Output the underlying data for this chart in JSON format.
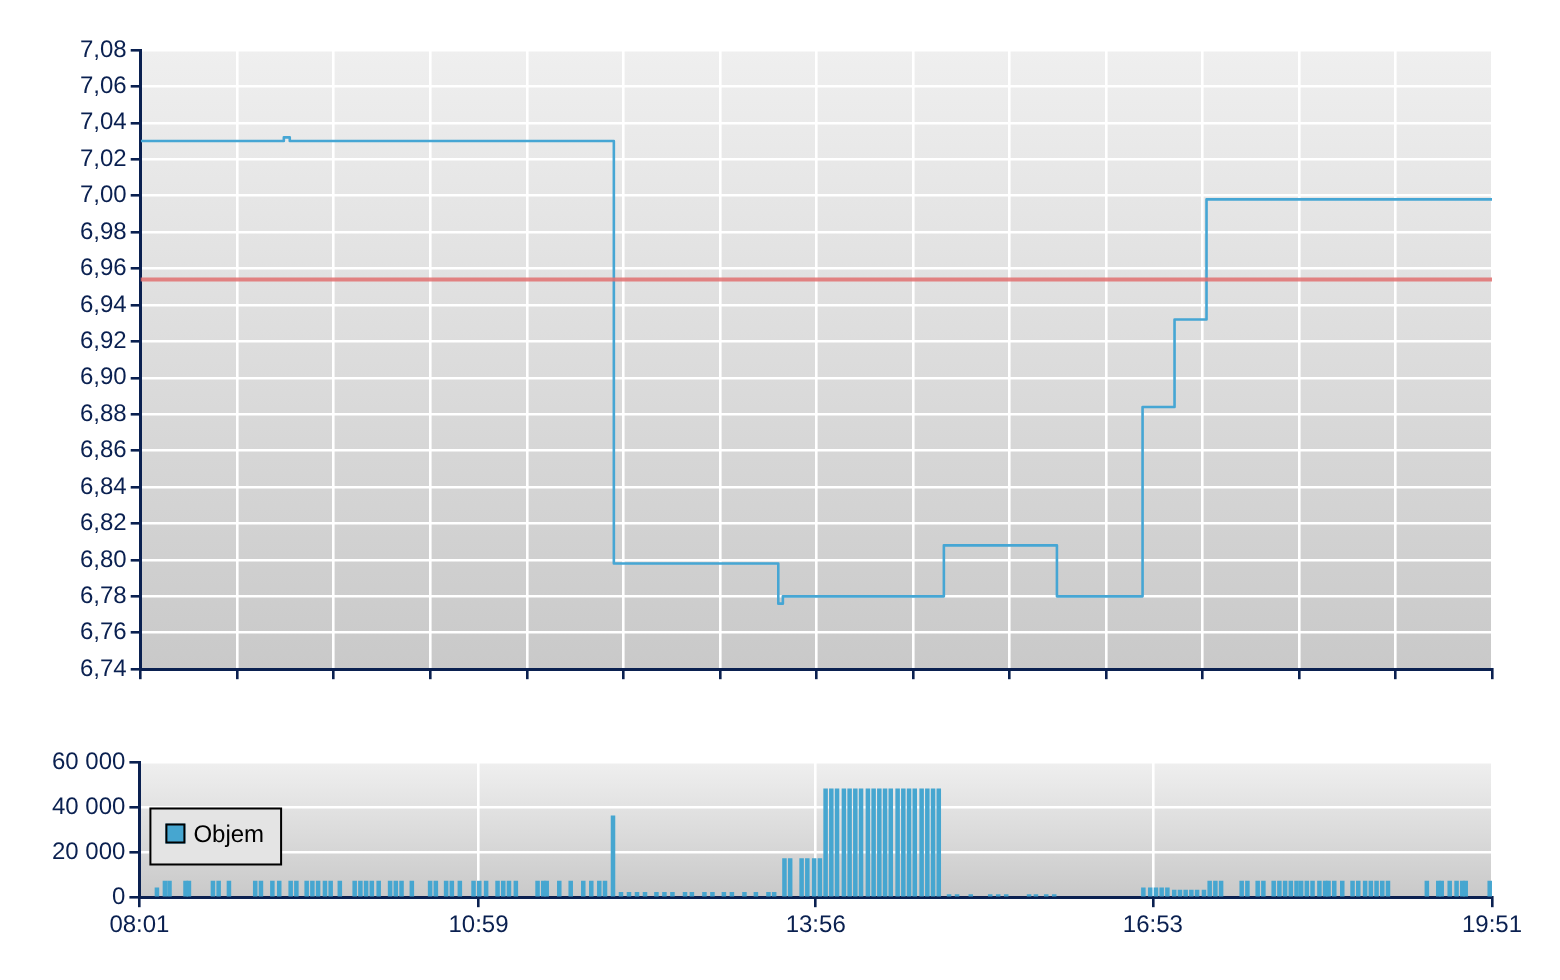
{
  "chart_data": [
    {
      "type": "step",
      "color": "#46a6d4",
      "x": [
        8.017,
        9.27,
        9.322,
        12.16,
        13.6,
        13.64,
        15.05,
        16.04,
        16.79,
        17.07,
        17.35,
        19.85
      ],
      "values": [
        7.03,
        7.032,
        7.03,
        6.798,
        6.776,
        6.78,
        6.808,
        6.78,
        6.884,
        6.932,
        6.998,
        6.998
      ],
      "xlim": [
        8.0167,
        19.85
      ],
      "xticks": [
        {
          "value": 8.0167,
          "label": null
        },
        {
          "value": 8.862,
          "label": null
        },
        {
          "value": 9.707,
          "label": null
        },
        {
          "value": 10.552,
          "label": null
        },
        {
          "value": 11.398,
          "label": null
        },
        {
          "value": 12.243,
          "label": null
        },
        {
          "value": 13.088,
          "label": null
        },
        {
          "value": 13.933,
          "label": null
        },
        {
          "value": 14.779,
          "label": null
        },
        {
          "value": 15.624,
          "label": null
        },
        {
          "value": 16.469,
          "label": null
        },
        {
          "value": 17.314,
          "label": null
        },
        {
          "value": 18.16,
          "label": null
        },
        {
          "value": 19.005,
          "label": null
        },
        {
          "value": 19.85,
          "label": null
        }
      ],
      "ylim": [
        6.74,
        7.08
      ],
      "yticks": [
        {
          "value": 6.74,
          "label": "6,74"
        },
        {
          "value": 6.76,
          "label": "6,76"
        },
        {
          "value": 6.78,
          "label": "6,78"
        },
        {
          "value": 6.8,
          "label": "6,80"
        },
        {
          "value": 6.82,
          "label": "6,82"
        },
        {
          "value": 6.84,
          "label": "6,84"
        },
        {
          "value": 6.86,
          "label": "6,86"
        },
        {
          "value": 6.88,
          "label": "6,88"
        },
        {
          "value": 6.9,
          "label": "6,90"
        },
        {
          "value": 6.92,
          "label": "6,92"
        },
        {
          "value": 6.94,
          "label": "6,94"
        },
        {
          "value": 6.96,
          "label": "6,96"
        },
        {
          "value": 6.98,
          "label": "6,98"
        },
        {
          "value": 7,
          "label": "7,00"
        },
        {
          "value": 7.02,
          "label": "7,02"
        },
        {
          "value": 7.04,
          "label": "7,04"
        },
        {
          "value": 7.06,
          "label": "7,06"
        },
        {
          "value": 7.08,
          "label": "7,08"
        }
      ],
      "grid": true,
      "tick_labels": "y",
      "ref_lines": [
        {
          "axis": "y",
          "value": 6.954,
          "color": "#e07070"
        }
      ]
    },
    {
      "type": "bar",
      "legend": "left",
      "grid": true,
      "x": [
        8.17,
        8.24,
        8.28,
        8.42,
        8.45,
        8.66,
        8.71,
        8.8,
        9.03,
        9.08,
        9.18,
        9.24,
        9.34,
        9.39,
        9.48,
        9.53,
        9.58,
        9.64,
        9.69,
        9.77,
        9.9,
        9.95,
        10.0,
        10.05,
        10.11,
        10.21,
        10.26,
        10.31,
        10.4,
        10.56,
        10.61,
        10.7,
        10.75,
        10.82,
        10.94,
        10.99,
        11.05,
        11.15,
        11.2,
        11.25,
        11.31,
        11.5,
        11.55,
        11.58,
        11.69,
        11.79,
        11.9,
        11.97,
        12.04,
        12.09,
        12.16,
        12.23,
        12.3,
        12.37,
        12.44,
        12.54,
        12.61,
        12.68,
        12.79,
        12.85,
        12.96,
        13.03,
        13.13,
        13.2,
        13.31,
        13.41,
        13.52,
        13.57,
        13.66,
        13.71,
        13.81,
        13.86,
        13.92,
        13.97,
        14.02,
        14.07,
        14.12,
        14.18,
        14.23,
        14.28,
        14.33,
        14.39,
        14.44,
        14.49,
        14.54,
        14.59,
        14.65,
        14.7,
        14.75,
        14.8,
        14.86,
        14.91,
        14.96,
        15.01,
        15.1,
        15.17,
        15.29,
        15.46,
        15.53,
        15.6,
        15.8,
        15.86,
        15.95,
        16.02,
        16.8,
        16.86,
        16.91,
        16.96,
        17.01,
        17.07,
        17.12,
        17.17,
        17.22,
        17.27,
        17.33,
        17.38,
        17.43,
        17.48,
        17.66,
        17.71,
        17.8,
        17.85,
        17.94,
        17.99,
        18.04,
        18.09,
        18.14,
        18.18,
        18.23,
        18.28,
        18.34,
        18.39,
        18.42,
        18.47,
        18.54,
        18.63,
        18.68,
        18.74,
        18.79,
        18.84,
        18.89,
        18.94,
        19.28,
        19.38,
        19.41,
        19.48,
        19.54,
        19.59,
        19.62,
        19.83
      ],
      "series": [
        {
          "name": "Objem",
          "color": "#46a6d0",
          "values": [
            4000,
            7000,
            7000,
            7000,
            7000,
            7000,
            7000,
            7000,
            7000,
            7000,
            7000,
            7000,
            7000,
            7000,
            7000,
            7000,
            7000,
            7000,
            7000,
            7000,
            7000,
            7000,
            7000,
            7000,
            7000,
            7000,
            7000,
            7000,
            7000,
            7000,
            7000,
            7000,
            7000,
            7000,
            7000,
            7000,
            7000,
            7000,
            7000,
            7000,
            7000,
            7000,
            7000,
            7000,
            7000,
            7000,
            7000,
            7000,
            7000,
            7000,
            36000,
            2000,
            2000,
            2000,
            2000,
            2000,
            2000,
            2000,
            2000,
            2000,
            2000,
            2000,
            2000,
            2000,
            2000,
            2000,
            2000,
            2000,
            17000,
            17000,
            17000,
            17000,
            17000,
            17000,
            48000,
            48000,
            48000,
            48000,
            48000,
            48000,
            48000,
            48000,
            48000,
            48000,
            48000,
            48000,
            48000,
            48000,
            48000,
            48000,
            48000,
            48000,
            48000,
            48000,
            1000,
            1000,
            1000,
            1000,
            1000,
            1000,
            1000,
            1000,
            1000,
            1000,
            4000,
            4000,
            4000,
            4000,
            4000,
            3000,
            3000,
            3000,
            3000,
            3000,
            3000,
            7000,
            7000,
            7000,
            7000,
            7000,
            7000,
            7000,
            7000,
            7000,
            7000,
            7000,
            7000,
            7000,
            7000,
            7000,
            7000,
            7000,
            7000,
            7000,
            7000,
            7000,
            7000,
            7000,
            7000,
            7000,
            7000,
            7000,
            7000,
            7000,
            7000,
            7000,
            7000,
            7000,
            7000,
            7000
          ]
        }
      ],
      "xlim": [
        8.0167,
        19.85
      ],
      "xticks": [
        {
          "value": 8.0167,
          "label": "08:01"
        },
        {
          "value": 10.9833,
          "label": "10:59"
        },
        {
          "value": 13.9333,
          "label": "13:56"
        },
        {
          "value": 16.8833,
          "label": "16:53"
        },
        {
          "value": 19.85,
          "label": "19:51"
        }
      ],
      "ylim": [
        0,
        60000
      ],
      "yticks": [
        0,
        {
          "value": 20000,
          "label": "20 000"
        },
        {
          "value": 40000,
          "label": "40 000"
        },
        {
          "value": 60000,
          "label": "60 000"
        }
      ]
    }
  ]
}
